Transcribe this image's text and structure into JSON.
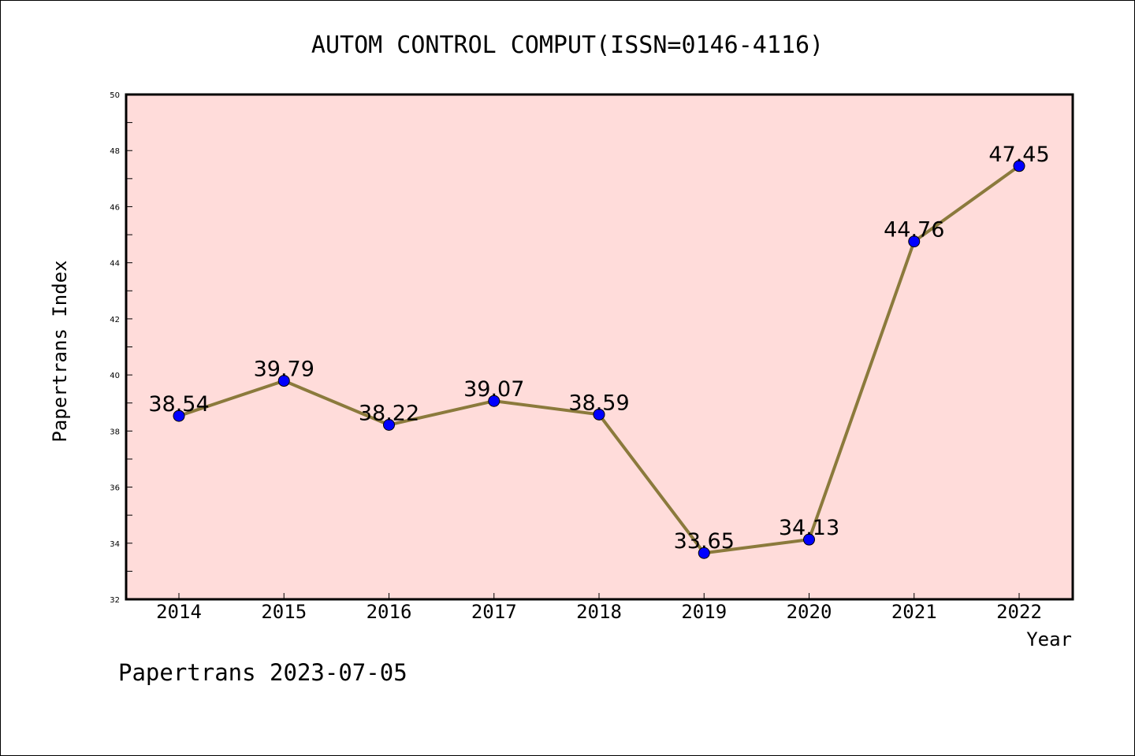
{
  "chart_data": {
    "type": "line",
    "title": "AUTOM CONTROL COMPUT(ISSN=0146-4116)",
    "xlabel": "Year",
    "ylabel": "Papertrans Index",
    "categories": [
      "2014",
      "2015",
      "2016",
      "2017",
      "2018",
      "2019",
      "2020",
      "2021",
      "2022"
    ],
    "values": [
      38.54,
      39.79,
      38.22,
      39.07,
      38.59,
      33.65,
      34.13,
      44.76,
      47.45
    ],
    "data_labels": [
      "38.54",
      "39.79",
      "38.22",
      "39.07",
      "38.59",
      "33.65",
      "34.13",
      "44.76",
      "47.45"
    ],
    "ylim": [
      32,
      50
    ],
    "yticks": [
      32,
      34,
      36,
      38,
      40,
      42,
      44,
      46,
      48,
      50
    ],
    "ytick_labels": [
      "32",
      "34",
      "36",
      "38",
      "40",
      "42",
      "44",
      "46",
      "48",
      "50"
    ],
    "grid": false,
    "legend": "none",
    "colors": {
      "plot_background": "#ffdcda",
      "line": "#8b7a3c",
      "marker": "#0000ff"
    }
  },
  "footer": "Papertrans 2023-07-05"
}
